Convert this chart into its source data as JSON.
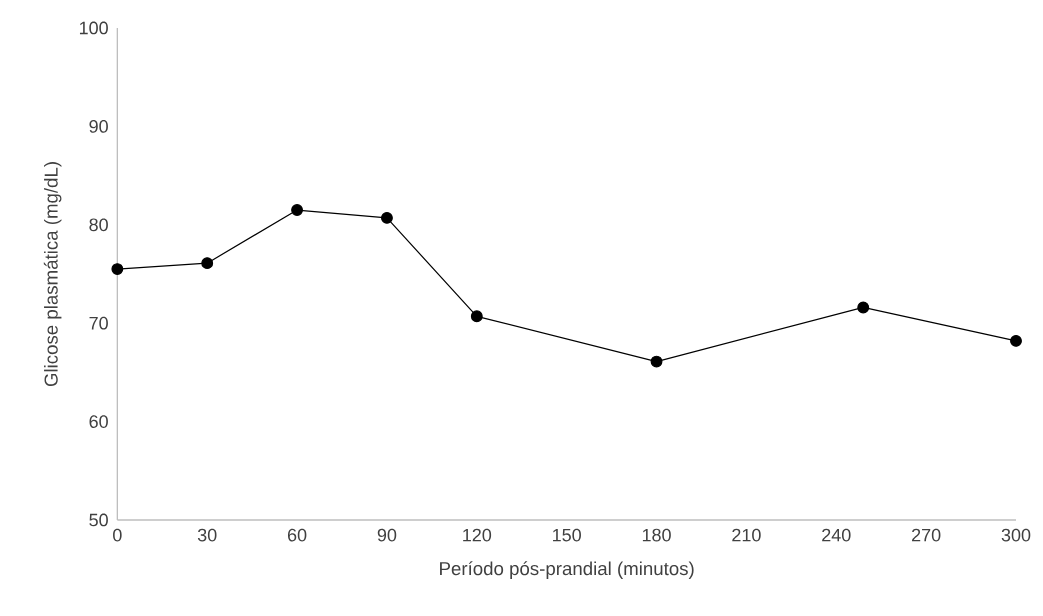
{
  "chart_data": {
    "type": "line",
    "xlabel": "Período pós-prandial (minutos)",
    "ylabel": "Glicose plasmática (mg/dL)",
    "x": [
      0,
      30,
      60,
      90,
      120,
      180,
      249,
      300
    ],
    "series": [
      {
        "color": "#000000",
        "values": [
          75.5,
          76.1,
          81.5,
          80.7,
          70.7,
          66.1,
          71.6,
          68.2
        ]
      }
    ],
    "xlim": [
      0,
      300
    ],
    "xticks": [
      0,
      30,
      60,
      90,
      120,
      150,
      180,
      210,
      240,
      270,
      300
    ],
    "ylim": [
      50,
      100
    ],
    "yticks": [
      50,
      60,
      70,
      80,
      90,
      100
    ],
    "marker": "circle",
    "line_style": "solid"
  }
}
